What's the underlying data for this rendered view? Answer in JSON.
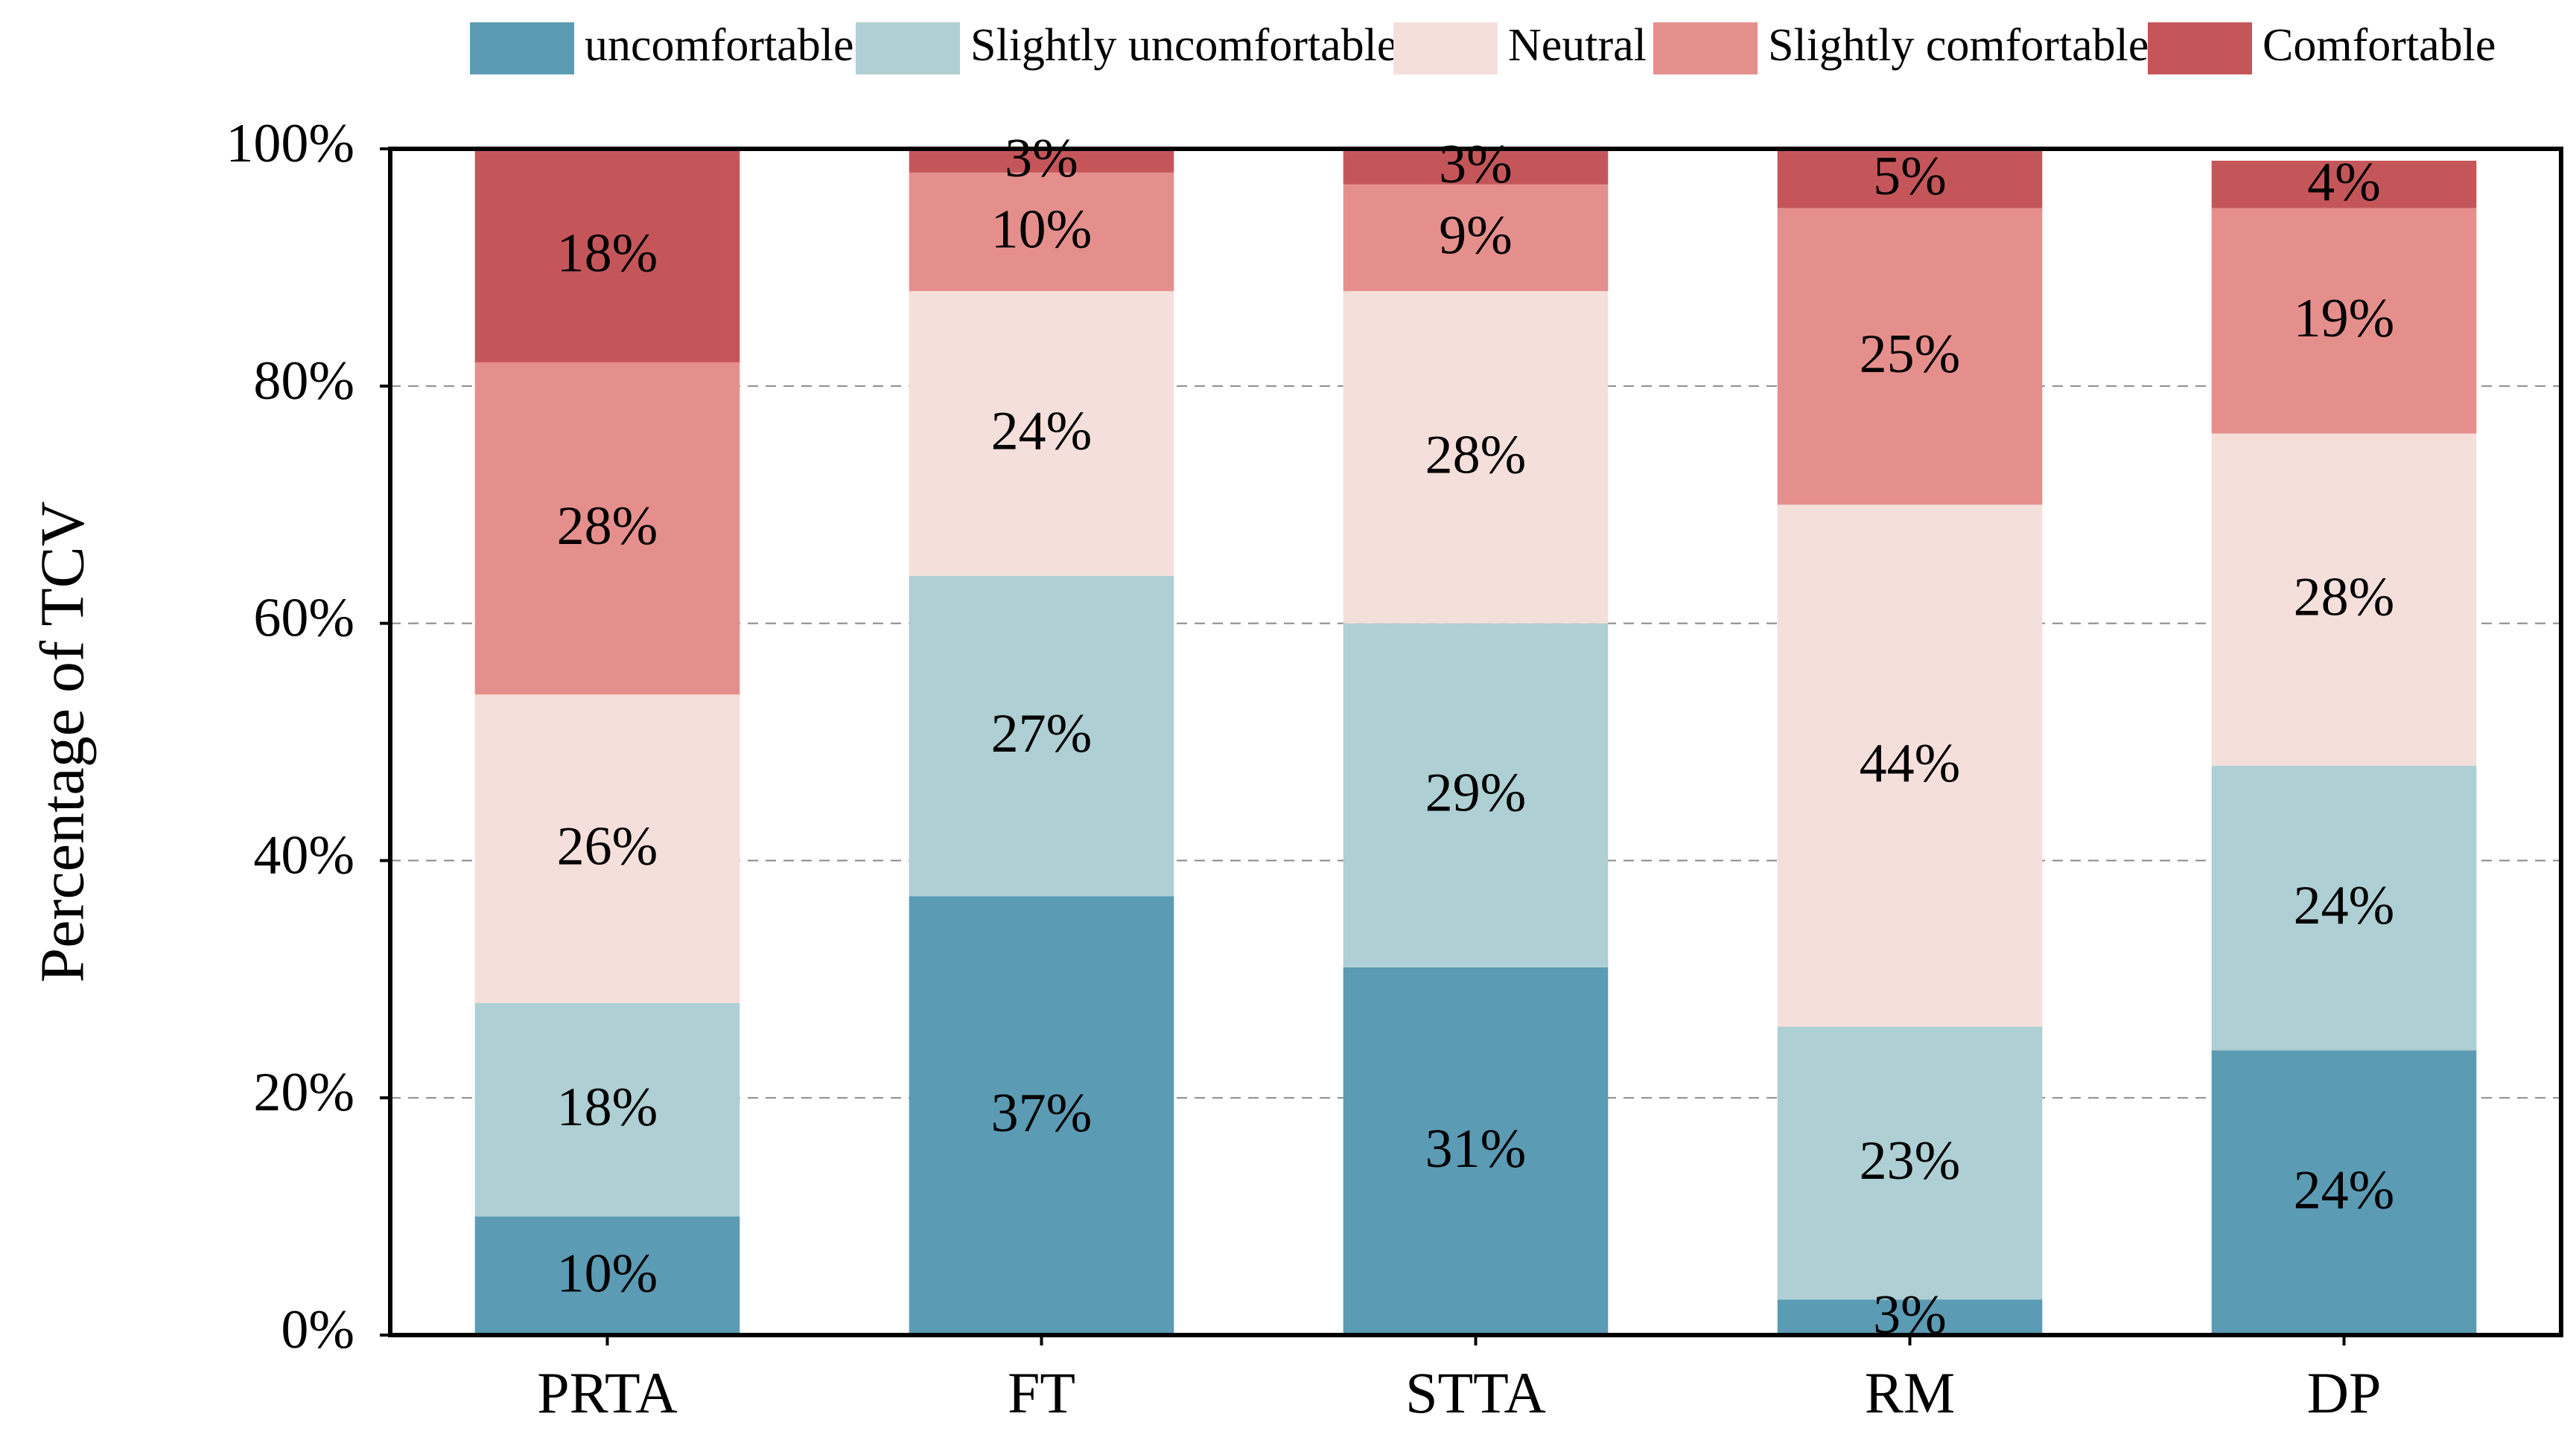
{
  "chart_data": {
    "type": "bar",
    "stacked": true,
    "categories": [
      "PRTA",
      "FT",
      "STTA",
      "RM",
      "DP"
    ],
    "series": [
      {
        "name": "uncomfortable",
        "color": "#5b9bb4",
        "values": [
          10,
          37,
          31,
          3,
          24
        ],
        "labels": [
          "10%",
          "37%",
          "31%",
          "3%",
          "24%"
        ]
      },
      {
        "name": "Slightly uncomfortable",
        "color": "#aecfd3",
        "values": [
          18,
          27,
          29,
          23,
          24
        ],
        "labels": [
          "18%",
          "27%",
          "29%",
          "23%",
          "24%"
        ]
      },
      {
        "name": "Neutral",
        "color": "#f5dfdb",
        "values": [
          26,
          24,
          28,
          44,
          28
        ],
        "labels": [
          "26%",
          "24%",
          "28%",
          "44%",
          "28%"
        ]
      },
      {
        "name": "Slightly comfortable",
        "color": "#e58f8d",
        "values": [
          28,
          10,
          9,
          25,
          19
        ],
        "labels": [
          "28%",
          "10%",
          "9%",
          "25%",
          "19%"
        ]
      },
      {
        "name": "Comfortable",
        "color": "#c4565a",
        "values": [
          18,
          3,
          3,
          5,
          4
        ],
        "labels": [
          "18%",
          "3%",
          "3%",
          "5%",
          "4%"
        ]
      }
    ],
    "ylabel": "Percentage of TCV",
    "xlabel": "",
    "ylim": [
      0,
      100
    ],
    "yticks": [
      0,
      20,
      40,
      60,
      80,
      100
    ],
    "ytick_labels": [
      "0%",
      "20%",
      "40%",
      "60%",
      "80%",
      "100%"
    ],
    "grid": "y-dashed",
    "legend_position": "top"
  }
}
